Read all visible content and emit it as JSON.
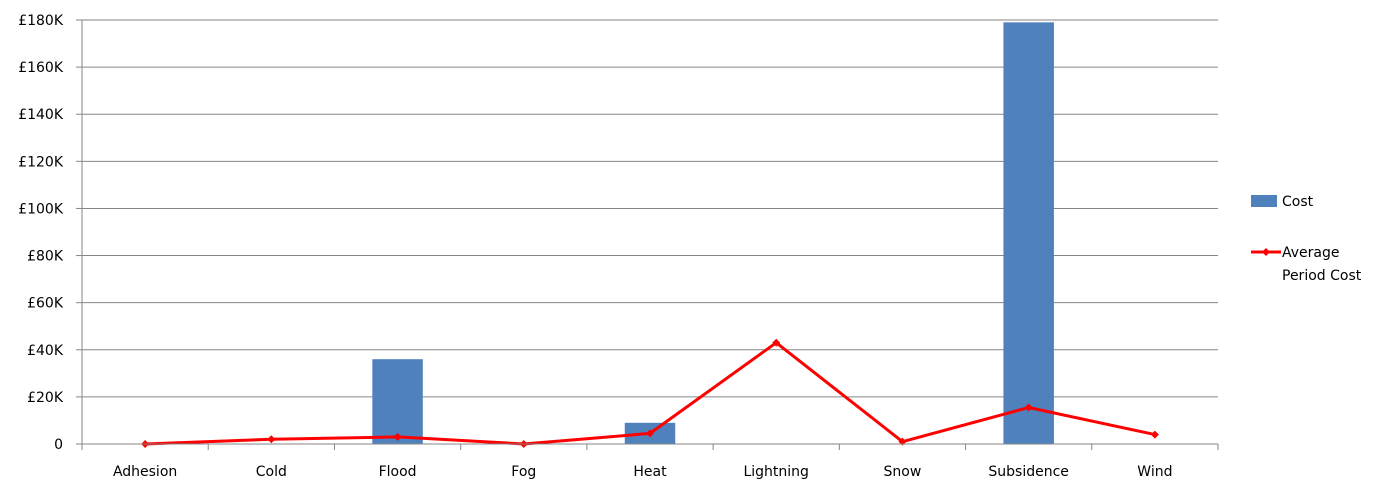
{
  "chart_data": {
    "type": "bar",
    "categories": [
      "Adhesion",
      "Cold",
      "Flood",
      "Fog",
      "Heat",
      "Lightning",
      "Snow",
      "Subsidence",
      "Wind"
    ],
    "series": [
      {
        "name": "Cost",
        "type": "bar",
        "color": "#4F81BD",
        "values": [
          0,
          0,
          36000,
          0,
          9000,
          0,
          0,
          179000,
          0
        ]
      },
      {
        "name": "Average Period Cost",
        "legend_lines": [
          "Average",
          "Period Cost"
        ],
        "type": "line",
        "color": "#FF0000",
        "values": [
          0,
          2000,
          3000,
          0,
          4500,
          43000,
          1000,
          15500,
          4000
        ]
      }
    ],
    "y_ticks": [
      "0",
      "£20K",
      "£40K",
      "£60K",
      "£80K",
      "£100K",
      "£120K",
      "£140K",
      "£160K",
      "£180K"
    ],
    "ylim": [
      0,
      180000
    ],
    "grid": true,
    "legend_position": "right"
  }
}
